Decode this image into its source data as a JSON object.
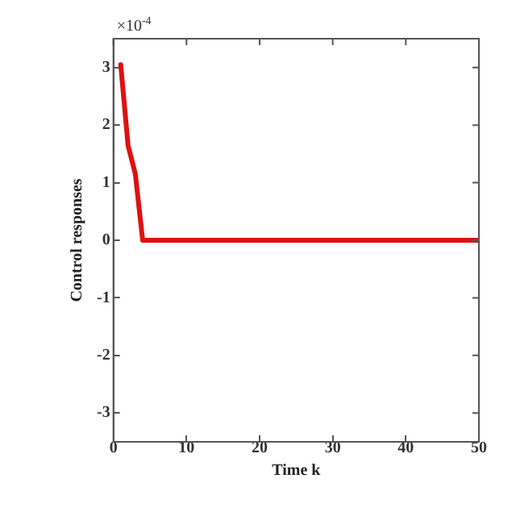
{
  "chart_data": {
    "type": "line",
    "xlabel": "Time k",
    "ylabel": "Control responses",
    "annotations": [
      "×10$^{-4}$"
    ],
    "x": [
      1,
      2,
      3,
      4,
      50
    ],
    "series": [
      {
        "color": "#dd1111",
        "values": [
          3.05,
          1.65,
          1.15,
          0,
          0
        ]
      }
    ],
    "xlim": [
      0,
      50
    ],
    "xticks": [
      0,
      10,
      20,
      30,
      40,
      50
    ],
    "ylim": [
      -3.5,
      3.5
    ],
    "yticks": [
      -3,
      -2,
      -1,
      0,
      1,
      2,
      3
    ],
    "grid": false,
    "legend": false,
    "marker": "none",
    "line_style": "solid"
  }
}
